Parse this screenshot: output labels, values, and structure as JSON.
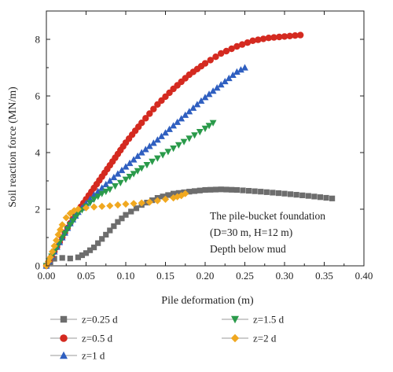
{
  "chart_data": {
    "type": "scatter",
    "title": "",
    "xlabel": "Pile deformation (m)",
    "ylabel": "Soil reaction force (MN/m)",
    "xlim": [
      0,
      0.4
    ],
    "ylim": [
      0,
      9
    ],
    "xticks": [
      "0.00",
      "0.05",
      "0.10",
      "0.15",
      "0.20",
      "0.25",
      "0.30",
      "0.35",
      "0.40"
    ],
    "yticks": [
      "0",
      "2",
      "4",
      "6",
      "8"
    ],
    "grid": false,
    "legend_position": "bottom",
    "annotation": [
      "The pile-bucket foundation",
      "(D=30 m, H=12 m)",
      "Depth below mud"
    ],
    "series": [
      {
        "name": "z=0.25 d",
        "color": "#6d6d6d",
        "marker": "square",
        "x": [
          0,
          0.01,
          0.02,
          0.03,
          0.04,
          0.05,
          0.06,
          0.07,
          0.08,
          0.09,
          0.1,
          0.12,
          0.14,
          0.16,
          0.18,
          0.2,
          0.22,
          0.24,
          0.27,
          0.3,
          0.33,
          0.36
        ],
        "y": [
          0,
          0.25,
          0.28,
          0.26,
          0.3,
          0.45,
          0.65,
          0.95,
          1.25,
          1.55,
          1.8,
          2.15,
          2.4,
          2.55,
          2.62,
          2.68,
          2.7,
          2.68,
          2.62,
          2.55,
          2.47,
          2.38
        ]
      },
      {
        "name": "z=0.5 d",
        "color": "#d42a20",
        "marker": "circle",
        "x": [
          0,
          0.01,
          0.02,
          0.03,
          0.04,
          0.05,
          0.06,
          0.07,
          0.08,
          0.09,
          0.1,
          0.12,
          0.14,
          0.16,
          0.18,
          0.2,
          0.22,
          0.24,
          0.26,
          0.28,
          0.3,
          0.32
        ],
        "y": [
          0,
          0.5,
          1.0,
          1.5,
          1.95,
          2.35,
          2.75,
          3.15,
          3.55,
          3.95,
          4.35,
          5.05,
          5.7,
          6.25,
          6.75,
          7.15,
          7.5,
          7.75,
          7.95,
          8.05,
          8.1,
          8.15
        ]
      },
      {
        "name": "z=1 d",
        "color": "#2f5fc0",
        "marker": "triangle-up",
        "x": [
          0,
          0.01,
          0.02,
          0.03,
          0.04,
          0.05,
          0.06,
          0.07,
          0.08,
          0.1,
          0.12,
          0.14,
          0.16,
          0.18,
          0.2,
          0.22,
          0.24,
          0.25
        ],
        "y": [
          0,
          0.5,
          1.0,
          1.5,
          1.9,
          2.2,
          2.5,
          2.75,
          3.0,
          3.5,
          4.0,
          4.45,
          4.95,
          5.45,
          5.95,
          6.4,
          6.85,
          7.0
        ]
      },
      {
        "name": "z=1.5 d",
        "color": "#2a9a4a",
        "marker": "triangle-down",
        "x": [
          0,
          0.01,
          0.02,
          0.03,
          0.04,
          0.05,
          0.06,
          0.07,
          0.08,
          0.1,
          0.12,
          0.14,
          0.16,
          0.18,
          0.2,
          0.21
        ],
        "y": [
          0,
          0.5,
          1.0,
          1.45,
          1.85,
          2.1,
          2.35,
          2.55,
          2.7,
          3.05,
          3.45,
          3.8,
          4.15,
          4.5,
          4.85,
          5.05
        ]
      },
      {
        "name": "z=2 d",
        "color": "#f0a820",
        "marker": "diamond",
        "x": [
          0,
          0.005,
          0.01,
          0.015,
          0.02,
          0.025,
          0.03,
          0.035,
          0.04,
          0.05,
          0.06,
          0.07,
          0.08,
          0.09,
          0.1,
          0.11,
          0.12,
          0.13,
          0.14,
          0.15,
          0.16,
          0.17,
          0.175
        ],
        "y": [
          0,
          0.3,
          0.7,
          1.1,
          1.45,
          1.7,
          1.85,
          1.95,
          2.0,
          2.05,
          2.08,
          2.1,
          2.12,
          2.15,
          2.18,
          2.2,
          2.22,
          2.25,
          2.3,
          2.35,
          2.4,
          2.48,
          2.55
        ]
      }
    ]
  }
}
